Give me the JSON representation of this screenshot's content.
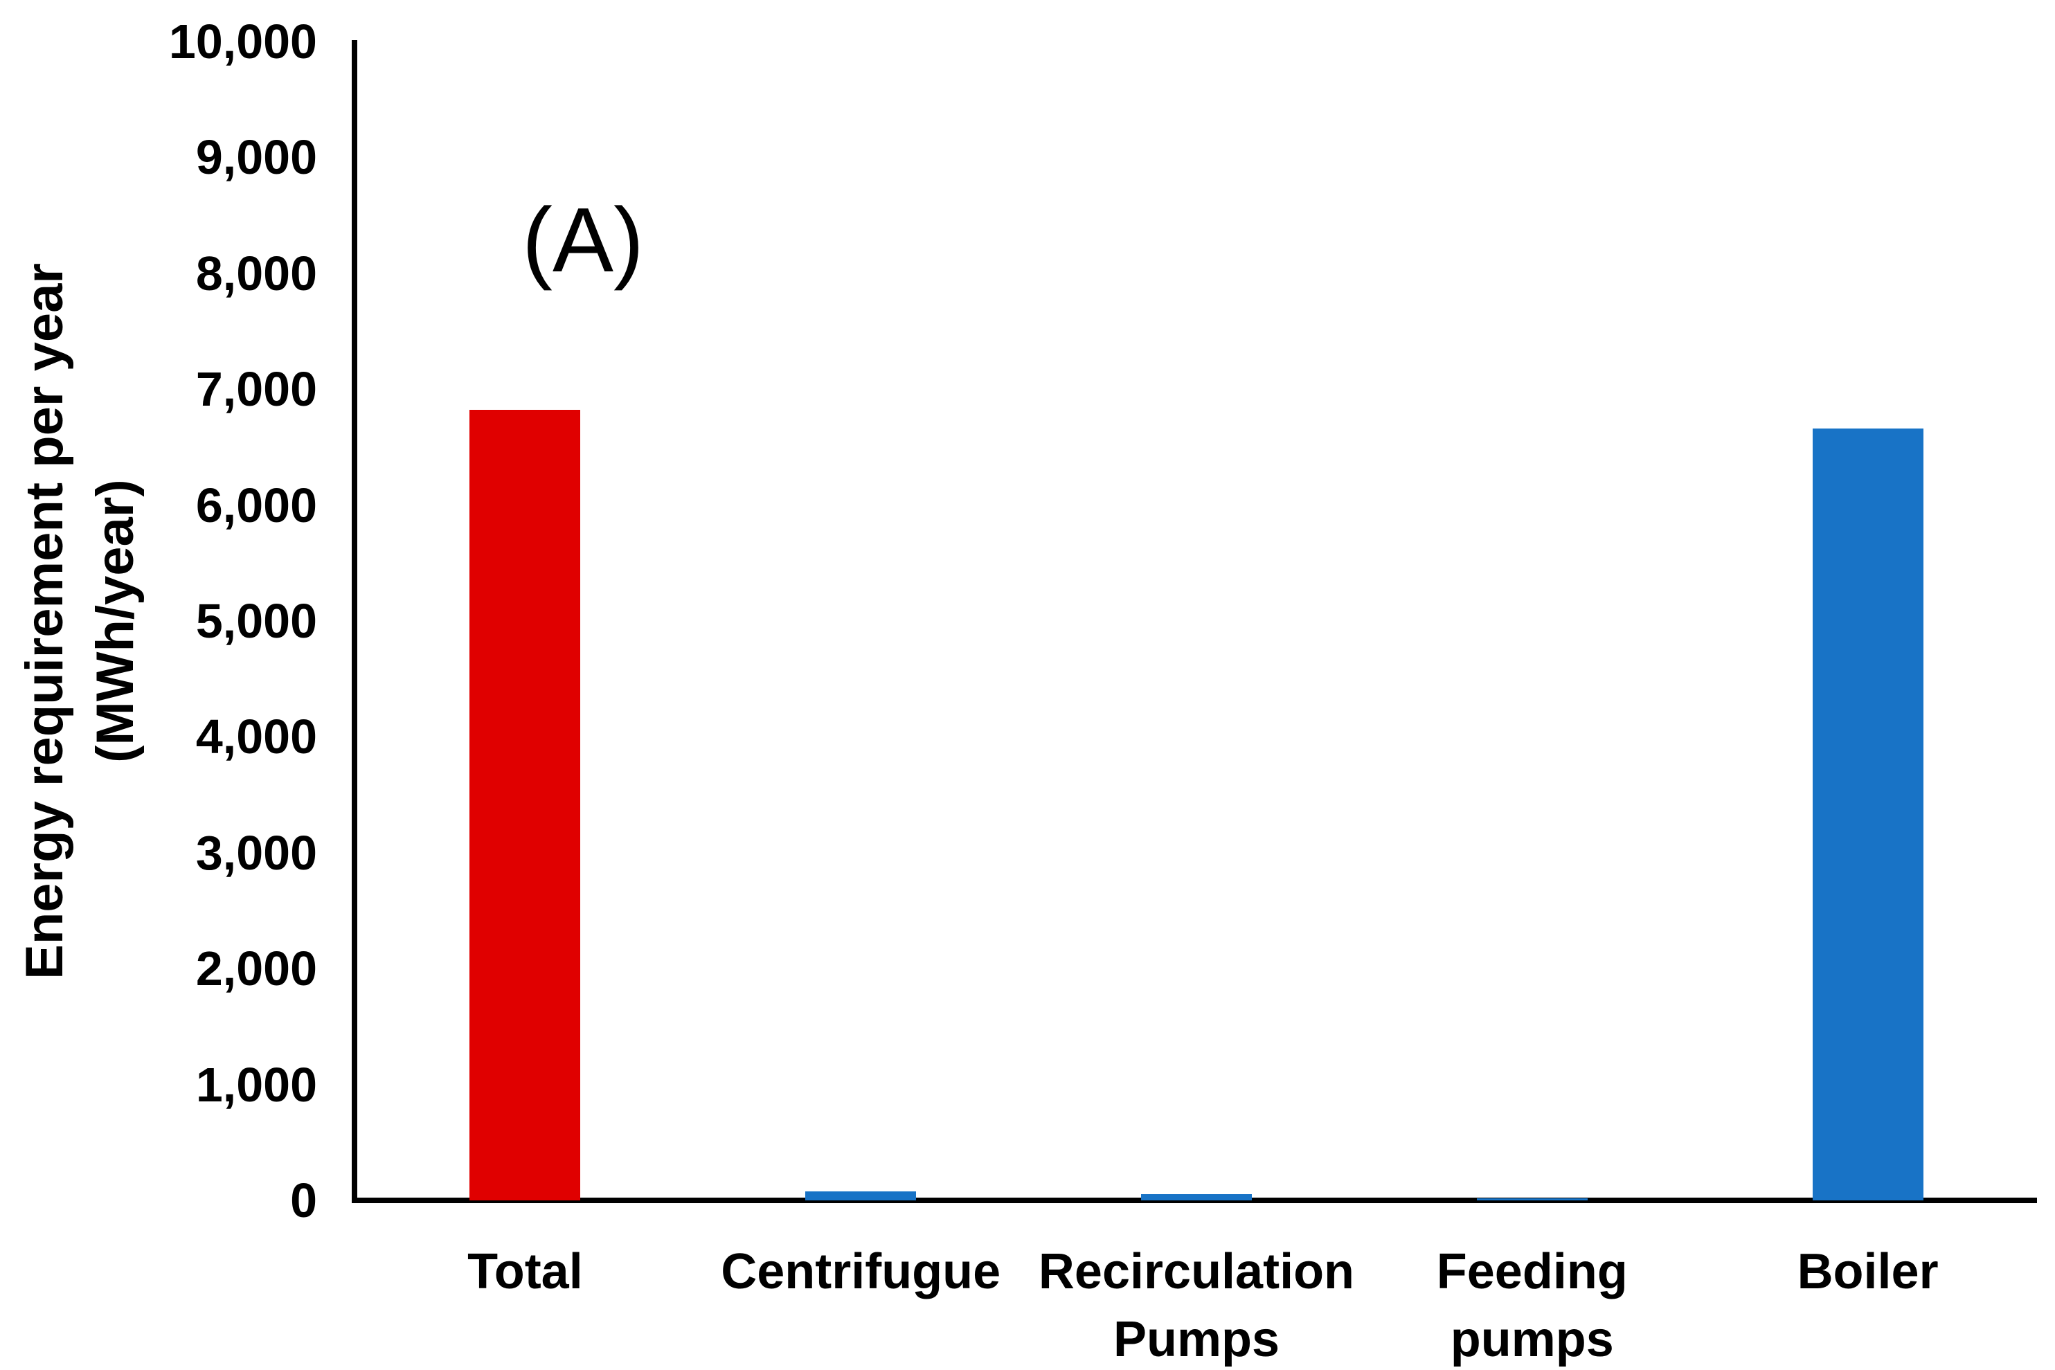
{
  "figure": {
    "background": "#ffffff",
    "panel_label": "(A)"
  },
  "chart_data": {
    "type": "bar",
    "title": "",
    "panel_label": "(A)",
    "categories": [
      "Total",
      "Centrifugue",
      "Recirculation\nPumps",
      "Feeding\npumps",
      "Boiler"
    ],
    "values": [
      6820,
      80,
      55,
      15,
      6660
    ],
    "bar_colors": [
      "#e00000",
      "#1873c6",
      "#1873c6",
      "#1873c6",
      "#1873c6"
    ],
    "series_colors": {
      "total_red": "#e00000",
      "component_blue": "#1873c6"
    },
    "xlabel": "",
    "ylabel": "Energy requirement per year\n(MWh/year)",
    "ylim": [
      0,
      10000
    ],
    "yticks": [
      0,
      1000,
      2000,
      3000,
      4000,
      5000,
      6000,
      7000,
      8000,
      9000,
      10000
    ],
    "ytick_labels": [
      "0",
      "1,000",
      "2,000",
      "3,000",
      "4,000",
      "5,000",
      "6,000",
      "7,000",
      "8,000",
      "9,000",
      "10,000"
    ],
    "grid": false,
    "legend": false,
    "axis_color": "#000000"
  }
}
